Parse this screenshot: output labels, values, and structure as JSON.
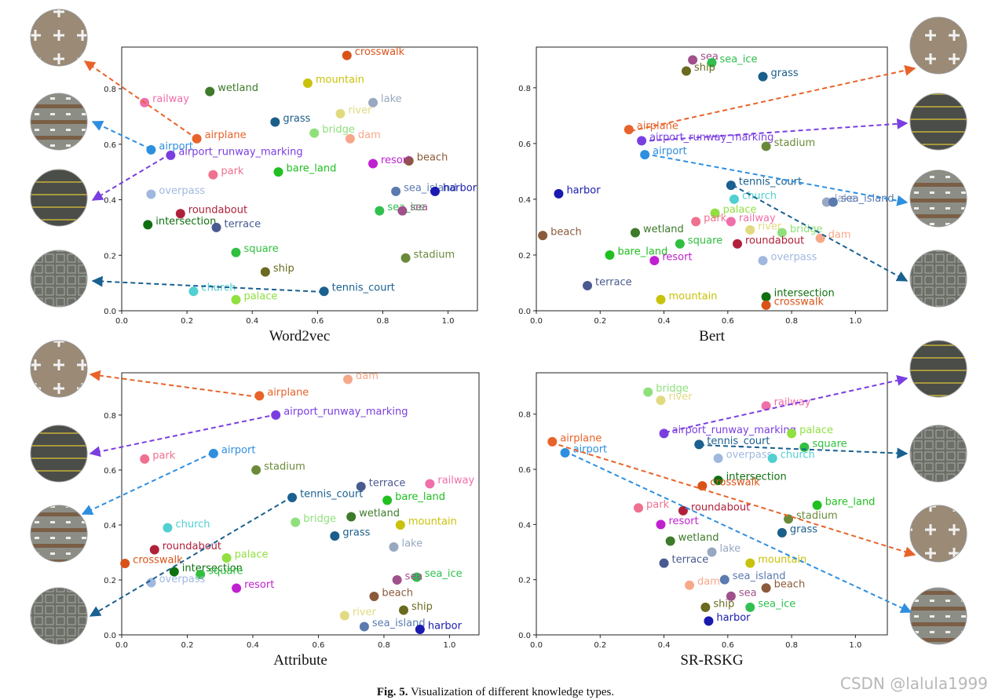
{
  "chart_data": [
    {
      "type": "scatter",
      "xlabel": "Word2vec",
      "xlim": [
        0,
        1.09
      ],
      "ylim": [
        0,
        0.95
      ],
      "xticks": [
        {
          "value": 0,
          "label": "0.0"
        },
        0.2,
        0.4,
        0.6,
        0.8,
        {
          "value": 1,
          "label": "1.0"
        }
      ],
      "yticks": [
        {
          "value": 0,
          "label": "0.0"
        },
        0.2,
        0.4,
        0.6,
        0.8
      ],
      "points": [
        {
          "label": "crosswalk",
          "x": 0.69,
          "y": 0.92,
          "color": "#d95319"
        },
        {
          "label": "mountain",
          "x": 0.57,
          "y": 0.82,
          "color": "#c8c20a"
        },
        {
          "label": "wetland",
          "x": 0.27,
          "y": 0.79,
          "color": "#3d7a2a"
        },
        {
          "label": "railway",
          "x": 0.07,
          "y": 0.75,
          "color": "#f06ea9"
        },
        {
          "label": "lake",
          "x": 0.77,
          "y": 0.75,
          "color": "#98a8c0"
        },
        {
          "label": "river",
          "x": 0.67,
          "y": 0.71,
          "color": "#e2da80"
        },
        {
          "label": "grass",
          "x": 0.47,
          "y": 0.68,
          "color": "#1a5e8a"
        },
        {
          "label": "bridge",
          "x": 0.59,
          "y": 0.64,
          "color": "#8fe07a"
        },
        {
          "label": "dam",
          "x": 0.7,
          "y": 0.62,
          "color": "#f7a88a"
        },
        {
          "label": "airplane",
          "x": 0.23,
          "y": 0.62,
          "color": "#e8632a"
        },
        {
          "label": "airport",
          "x": 0.09,
          "y": 0.58,
          "color": "#2e8fe0"
        },
        {
          "label": "airport_runway_marking",
          "x": 0.15,
          "y": 0.56,
          "color": "#7a3ee0"
        },
        {
          "label": "beach",
          "x": 0.88,
          "y": 0.54,
          "color": "#8a5a3a"
        },
        {
          "label": "resort",
          "x": 0.77,
          "y": 0.53,
          "color": "#c020d0"
        },
        {
          "label": "park",
          "x": 0.28,
          "y": 0.49,
          "color": "#f07090"
        },
        {
          "label": "bare_land",
          "x": 0.48,
          "y": 0.5,
          "color": "#20c020"
        },
        {
          "label": "overpass",
          "x": 0.09,
          "y": 0.42,
          "color": "#a0b8e0"
        },
        {
          "label": "sea_island",
          "x": 0.84,
          "y": 0.43,
          "color": "#5a7ab0"
        },
        {
          "label": "harbor",
          "x": 0.96,
          "y": 0.43,
          "color": "#1a1ab0"
        },
        {
          "label": "roundabout",
          "x": 0.18,
          "y": 0.35,
          "color": "#b0203a"
        },
        {
          "label": "sea_ice",
          "x": 0.79,
          "y": 0.36,
          "color": "#30c050"
        },
        {
          "label": "sea",
          "x": 0.86,
          "y": 0.36,
          "color": "#a0508a"
        },
        {
          "label": "intersection",
          "x": 0.08,
          "y": 0.31,
          "color": "#107010"
        },
        {
          "label": "terrace",
          "x": 0.29,
          "y": 0.3,
          "color": "#4a5a90"
        },
        {
          "label": "square",
          "x": 0.35,
          "y": 0.21,
          "color": "#30c040"
        },
        {
          "label": "stadium",
          "x": 0.87,
          "y": 0.19,
          "color": "#6a8a3a"
        },
        {
          "label": "ship",
          "x": 0.44,
          "y": 0.14,
          "color": "#6a6a20"
        },
        {
          "label": "tennis_court",
          "x": 0.62,
          "y": 0.07,
          "color": "#1a6090"
        },
        {
          "label": "church",
          "x": 0.22,
          "y": 0.07,
          "color": "#50d0d0"
        },
        {
          "label": "palace",
          "x": 0.35,
          "y": 0.04,
          "color": "#90e040"
        }
      ]
    },
    {
      "type": "scatter",
      "xlabel": "Bert",
      "xlim": [
        0,
        1.1
      ],
      "ylim": [
        0,
        0.946
      ],
      "xticks": [
        {
          "value": 0,
          "label": "0.0"
        },
        0.2,
        0.4,
        0.6,
        0.8,
        {
          "value": 1,
          "label": "1.0"
        }
      ],
      "yticks": [
        {
          "value": 0,
          "label": "0.0"
        },
        0.2,
        0.4,
        0.6,
        0.8
      ],
      "points": [
        {
          "label": "sea",
          "x": 0.49,
          "y": 0.9,
          "color": "#a0508a"
        },
        {
          "label": "sea_ice",
          "x": 0.55,
          "y": 0.89,
          "color": "#30c050"
        },
        {
          "label": "ship",
          "x": 0.47,
          "y": 0.86,
          "color": "#6a6a20"
        },
        {
          "label": "grass",
          "x": 0.71,
          "y": 0.84,
          "color": "#1a5e8a"
        },
        {
          "label": "airplane",
          "x": 0.29,
          "y": 0.65,
          "color": "#e8632a"
        },
        {
          "label": "airport_runway_marking",
          "x": 0.33,
          "y": 0.61,
          "color": "#7a3ee0"
        },
        {
          "label": "stadium",
          "x": 0.72,
          "y": 0.59,
          "color": "#6a8a3a"
        },
        {
          "label": "airport",
          "x": 0.34,
          "y": 0.56,
          "color": "#2e8fe0"
        },
        {
          "label": "tennis_court",
          "x": 0.61,
          "y": 0.45,
          "color": "#1a6090"
        },
        {
          "label": "harbor",
          "x": 0.07,
          "y": 0.42,
          "color": "#1a1ab0"
        },
        {
          "label": "church",
          "x": 0.62,
          "y": 0.4,
          "color": "#50d0d0"
        },
        {
          "label": "lake",
          "x": 0.91,
          "y": 0.39,
          "color": "#98a8c0"
        },
        {
          "label": "sea_island",
          "x": 0.93,
          "y": 0.39,
          "color": "#5a7ab0"
        },
        {
          "label": "palace",
          "x": 0.56,
          "y": 0.35,
          "color": "#90e040"
        },
        {
          "label": "park",
          "x": 0.5,
          "y": 0.32,
          "color": "#f07090"
        },
        {
          "label": "railway",
          "x": 0.61,
          "y": 0.32,
          "color": "#f06ea9"
        },
        {
          "label": "river",
          "x": 0.67,
          "y": 0.29,
          "color": "#e2da80"
        },
        {
          "label": "bridge",
          "x": 0.77,
          "y": 0.28,
          "color": "#8fe07a"
        },
        {
          "label": "wetland",
          "x": 0.31,
          "y": 0.28,
          "color": "#3d7a2a"
        },
        {
          "label": "beach",
          "x": 0.02,
          "y": 0.27,
          "color": "#8a5a3a"
        },
        {
          "label": "dam",
          "x": 0.89,
          "y": 0.26,
          "color": "#f7a88a"
        },
        {
          "label": "square",
          "x": 0.45,
          "y": 0.24,
          "color": "#30c040"
        },
        {
          "label": "roundabout",
          "x": 0.63,
          "y": 0.24,
          "color": "#b0203a"
        },
        {
          "label": "bare_land",
          "x": 0.23,
          "y": 0.2,
          "color": "#20c020"
        },
        {
          "label": "resort",
          "x": 0.37,
          "y": 0.18,
          "color": "#c020d0"
        },
        {
          "label": "overpass",
          "x": 0.71,
          "y": 0.18,
          "color": "#a0b8e0"
        },
        {
          "label": "terrace",
          "x": 0.16,
          "y": 0.09,
          "color": "#4a5a90"
        },
        {
          "label": "mountain",
          "x": 0.39,
          "y": 0.04,
          "color": "#c8c20a"
        },
        {
          "label": "intersection",
          "x": 0.72,
          "y": 0.05,
          "color": "#107010"
        },
        {
          "label": "crosswalk",
          "x": 0.72,
          "y": 0.02,
          "color": "#d95319"
        }
      ]
    },
    {
      "type": "scatter",
      "xlabel": "Attribute",
      "xlim": [
        0,
        1.09
      ],
      "ylim": [
        0,
        0.954
      ],
      "xticks": [
        {
          "value": 0,
          "label": "0.0"
        },
        0.2,
        0.4,
        0.6,
        0.8,
        {
          "value": 1,
          "label": "1.0"
        }
      ],
      "yticks": [
        {
          "value": 0,
          "label": "0.0"
        },
        0.2,
        0.4,
        0.6,
        0.8
      ],
      "points": [
        {
          "label": "dam",
          "x": 0.69,
          "y": 0.93,
          "color": "#f7a88a"
        },
        {
          "label": "airplane",
          "x": 0.42,
          "y": 0.87,
          "color": "#e8632a"
        },
        {
          "label": "airport_runway_marking",
          "x": 0.47,
          "y": 0.8,
          "color": "#7a3ee0"
        },
        {
          "label": "park",
          "x": 0.07,
          "y": 0.64,
          "color": "#f07090"
        },
        {
          "label": "airport",
          "x": 0.28,
          "y": 0.66,
          "color": "#2e8fe0"
        },
        {
          "label": "stadium",
          "x": 0.41,
          "y": 0.6,
          "color": "#6a8a3a"
        },
        {
          "label": "terrace",
          "x": 0.73,
          "y": 0.54,
          "color": "#4a5a90"
        },
        {
          "label": "railway",
          "x": 0.94,
          "y": 0.55,
          "color": "#f06ea9"
        },
        {
          "label": "tennis_court",
          "x": 0.52,
          "y": 0.5,
          "color": "#1a6090"
        },
        {
          "label": "bare_land",
          "x": 0.81,
          "y": 0.49,
          "color": "#20c020"
        },
        {
          "label": "wetland",
          "x": 0.7,
          "y": 0.43,
          "color": "#3d7a2a"
        },
        {
          "label": "bridge",
          "x": 0.53,
          "y": 0.41,
          "color": "#8fe07a"
        },
        {
          "label": "church",
          "x": 0.14,
          "y": 0.39,
          "color": "#50d0d0"
        },
        {
          "label": "mountain",
          "x": 0.85,
          "y": 0.4,
          "color": "#c8c20a"
        },
        {
          "label": "grass",
          "x": 0.65,
          "y": 0.36,
          "color": "#1a5e8a"
        },
        {
          "label": "lake",
          "x": 0.83,
          "y": 0.32,
          "color": "#98a8c0"
        },
        {
          "label": "roundabout",
          "x": 0.1,
          "y": 0.31,
          "color": "#b0203a"
        },
        {
          "label": "palace",
          "x": 0.32,
          "y": 0.28,
          "color": "#90e040"
        },
        {
          "label": "crosswalk",
          "x": 0.01,
          "y": 0.26,
          "color": "#d95319"
        },
        {
          "label": "intersection",
          "x": 0.16,
          "y": 0.23,
          "color": "#107010"
        },
        {
          "label": "square",
          "x": 0.24,
          "y": 0.22,
          "color": "#30c040"
        },
        {
          "label": "sea_ice",
          "x": 0.9,
          "y": 0.21,
          "color": "#30c050"
        },
        {
          "label": "overpass",
          "x": 0.09,
          "y": 0.19,
          "color": "#a0b8e0"
        },
        {
          "label": "sea",
          "x": 0.84,
          "y": 0.2,
          "color": "#a0508a"
        },
        {
          "label": "resort",
          "x": 0.35,
          "y": 0.17,
          "color": "#c020d0"
        },
        {
          "label": "beach",
          "x": 0.77,
          "y": 0.14,
          "color": "#8a5a3a"
        },
        {
          "label": "ship",
          "x": 0.86,
          "y": 0.09,
          "color": "#6a6a20"
        },
        {
          "label": "river",
          "x": 0.68,
          "y": 0.07,
          "color": "#e2da80"
        },
        {
          "label": "sea_island",
          "x": 0.74,
          "y": 0.03,
          "color": "#5a7ab0"
        },
        {
          "label": "harbor",
          "x": 0.91,
          "y": 0.02,
          "color": "#1a1ab0"
        }
      ]
    },
    {
      "type": "scatter",
      "xlabel": "SR-RSKG",
      "xlim": [
        0,
        1.1
      ],
      "ylim": [
        0,
        0.95
      ],
      "xticks": [
        {
          "value": 0,
          "label": "0.0"
        },
        0.2,
        0.4,
        0.6,
        0.8,
        {
          "value": 1,
          "label": "1.0"
        }
      ],
      "yticks": [
        {
          "value": 0,
          "label": "0.0"
        },
        0.2,
        0.4,
        0.6,
        0.8
      ],
      "points": [
        {
          "label": "bridge",
          "x": 0.35,
          "y": 0.88,
          "color": "#8fe07a"
        },
        {
          "label": "river",
          "x": 0.39,
          "y": 0.85,
          "color": "#e2da80"
        },
        {
          "label": "railway",
          "x": 0.72,
          "y": 0.83,
          "color": "#f06ea9"
        },
        {
          "label": "airport_runway_marking",
          "x": 0.4,
          "y": 0.73,
          "color": "#7a3ee0"
        },
        {
          "label": "palace",
          "x": 0.8,
          "y": 0.73,
          "color": "#90e040"
        },
        {
          "label": "airplane",
          "x": 0.05,
          "y": 0.7,
          "color": "#e8632a"
        },
        {
          "label": "tennis_court",
          "x": 0.51,
          "y": 0.69,
          "color": "#1a6090"
        },
        {
          "label": "square",
          "x": 0.84,
          "y": 0.68,
          "color": "#30c040"
        },
        {
          "label": "airport",
          "x": 0.09,
          "y": 0.66,
          "color": "#2e8fe0"
        },
        {
          "label": "overpass",
          "x": 0.57,
          "y": 0.64,
          "color": "#a0b8e0"
        },
        {
          "label": "church",
          "x": 0.74,
          "y": 0.64,
          "color": "#50d0d0"
        },
        {
          "label": "intersection",
          "x": 0.57,
          "y": 0.56,
          "color": "#107010"
        },
        {
          "label": "crosswalk",
          "x": 0.52,
          "y": 0.54,
          "color": "#d95319"
        },
        {
          "label": "bare_land",
          "x": 0.88,
          "y": 0.47,
          "color": "#20c020"
        },
        {
          "label": "park",
          "x": 0.32,
          "y": 0.46,
          "color": "#f07090"
        },
        {
          "label": "roundabout",
          "x": 0.46,
          "y": 0.45,
          "color": "#b0203a"
        },
        {
          "label": "stadium",
          "x": 0.79,
          "y": 0.42,
          "color": "#6a8a3a"
        },
        {
          "label": "resort",
          "x": 0.39,
          "y": 0.4,
          "color": "#c020d0"
        },
        {
          "label": "grass",
          "x": 0.77,
          "y": 0.37,
          "color": "#1a5e8a"
        },
        {
          "label": "wetland",
          "x": 0.42,
          "y": 0.34,
          "color": "#3d7a2a"
        },
        {
          "label": "lake",
          "x": 0.55,
          "y": 0.3,
          "color": "#98a8c0"
        },
        {
          "label": "terrace",
          "x": 0.4,
          "y": 0.26,
          "color": "#4a5a90"
        },
        {
          "label": "mountain",
          "x": 0.67,
          "y": 0.26,
          "color": "#c8c20a"
        },
        {
          "label": "sea_island",
          "x": 0.59,
          "y": 0.2,
          "color": "#5a7ab0"
        },
        {
          "label": "beach",
          "x": 0.72,
          "y": 0.17,
          "color": "#8a5a3a"
        },
        {
          "label": "dam",
          "x": 0.48,
          "y": 0.18,
          "color": "#f7a88a"
        },
        {
          "label": "sea",
          "x": 0.61,
          "y": 0.14,
          "color": "#a0508a"
        },
        {
          "label": "ship",
          "x": 0.53,
          "y": 0.1,
          "color": "#6a6a20"
        },
        {
          "label": "sea_ice",
          "x": 0.67,
          "y": 0.1,
          "color": "#30c050"
        },
        {
          "label": "harbor",
          "x": 0.54,
          "y": 0.05,
          "color": "#1a1ab0"
        }
      ]
    }
  ],
  "caption": {
    "label": "Fig. 5.",
    "text": "Visualization of different knowledge types."
  },
  "watermark": "CSDN @lalula1999"
}
